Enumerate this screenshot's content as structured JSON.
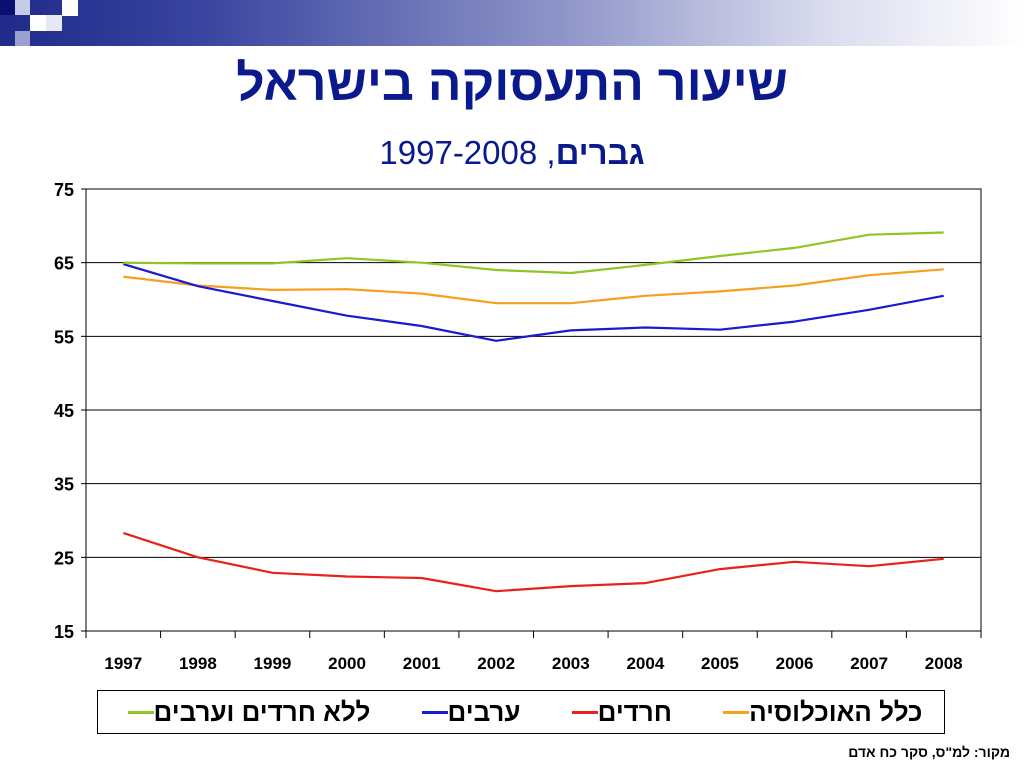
{
  "slide": {
    "title": "שיעור התעסוקה בישראל",
    "subtitle_bold": "גברים",
    "subtitle_rest": ", 1997-2008",
    "source": "מקור: למ\"ס, סקר כח אדם",
    "colors": {
      "title": "#0a1a8c",
      "deco_dark": "#1f2a8a"
    }
  },
  "chart_data": {
    "type": "line",
    "title": "",
    "xlabel": "",
    "ylabel": "",
    "x": [
      "1997",
      "1998",
      "1999",
      "2000",
      "2001",
      "2002",
      "2003",
      "2004",
      "2005",
      "2006",
      "2007",
      "2008"
    ],
    "ylim": [
      15,
      75
    ],
    "yticks": [
      15,
      25,
      35,
      45,
      55,
      65,
      75
    ],
    "grid": "horizontal",
    "legend_position": "bottom",
    "series": [
      {
        "name": "כלל האוכלוסיה",
        "color": "#f5a01e",
        "values": [
          63.1,
          61.9,
          61.3,
          61.4,
          60.8,
          59.5,
          59.5,
          60.5,
          61.1,
          61.9,
          63.3,
          64.1
        ]
      },
      {
        "name": "חרדים",
        "color": "#e8221b",
        "values": [
          28.3,
          25.0,
          22.9,
          22.4,
          22.2,
          20.4,
          21.1,
          21.5,
          23.4,
          24.4,
          23.8,
          24.8
        ],
        "segments": [
          [
            0,
            1
          ],
          [
            1,
            4
          ],
          [
            4,
            11
          ]
        ]
      },
      {
        "name": "ערבים",
        "color": "#1a1acf",
        "values": [
          64.8,
          61.8,
          59.8,
          57.8,
          56.4,
          54.4,
          55.8,
          56.2,
          55.9,
          57.0,
          58.6,
          60.5
        ],
        "segments": [
          [
            0,
            1
          ],
          [
            1,
            4
          ],
          [
            4,
            11
          ]
        ]
      },
      {
        "name": "ללא חרדים וערבים",
        "color": "#92c425",
        "values": [
          65.0,
          64.9,
          64.9,
          65.6,
          65.0,
          64.0,
          63.6,
          64.7,
          65.9,
          67.0,
          68.8,
          69.1
        ],
        "segments": [
          [
            0,
            1
          ],
          [
            1,
            11
          ]
        ]
      }
    ]
  }
}
